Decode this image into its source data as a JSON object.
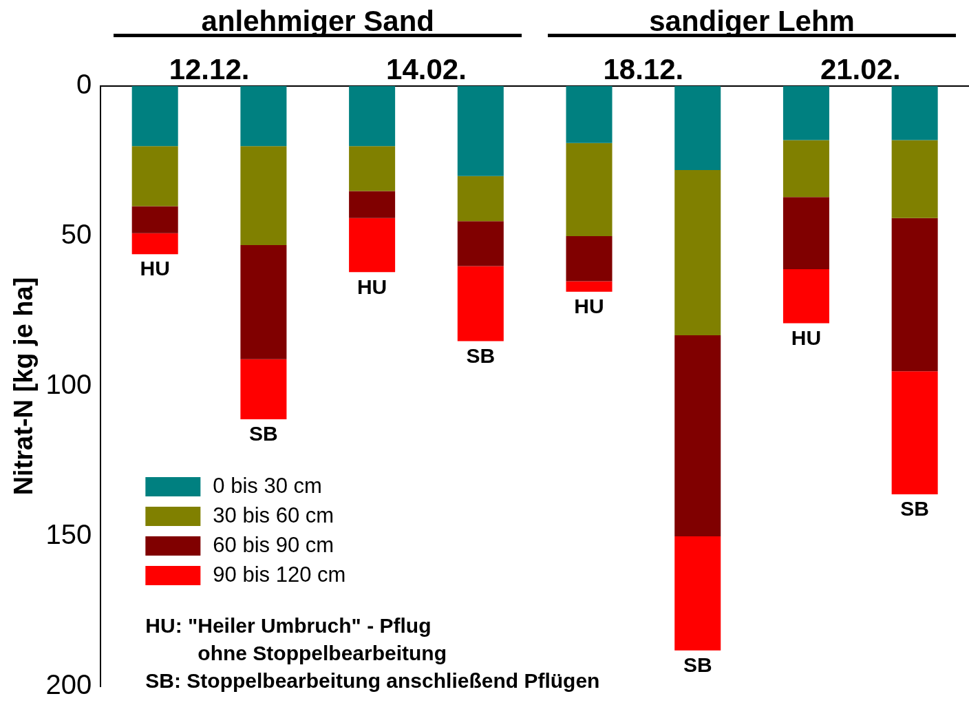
{
  "chart_data": {
    "type": "bar",
    "stacked": true,
    "ylabel": "Nitrat-N [kg je ha]",
    "categories": [
      "HU",
      "SB",
      "HU",
      "SB",
      "HU",
      "SB",
      "HU",
      "SB"
    ],
    "series": [
      {
        "name": "0 bis 30 cm",
        "color": "#008080",
        "values": [
          20,
          20,
          20,
          30,
          19,
          28,
          18,
          18
        ]
      },
      {
        "name": "30 bis 60 cm",
        "color": "#808000",
        "values": [
          20,
          33,
          15,
          15,
          31,
          55,
          19,
          26
        ]
      },
      {
        "name": "60 bis 90 cm",
        "color": "#800000",
        "values": [
          9,
          38,
          9,
          15,
          15,
          67,
          24,
          51
        ]
      },
      {
        "name": "90 bis 120 cm",
        "color": "#ff0000",
        "values": [
          7,
          20,
          18,
          25,
          3.5,
          38,
          18,
          41
        ]
      }
    ],
    "ylim": [
      200,
      0
    ],
    "yticks": [
      0,
      50,
      100,
      150,
      200
    ],
    "grid": false,
    "legend": "bottom left",
    "annotations": [
      "12.12.",
      "14.02.",
      "18.12.",
      "21.02.",
      "anlehmiger Sand",
      "sandiger Lehm",
      "HU: \"Heiler Umbruch\" - Pflug\nohne Stoppelbearbeitung",
      "SB: Stoppelbearbeitung anschließend Pflügen"
    ]
  }
}
